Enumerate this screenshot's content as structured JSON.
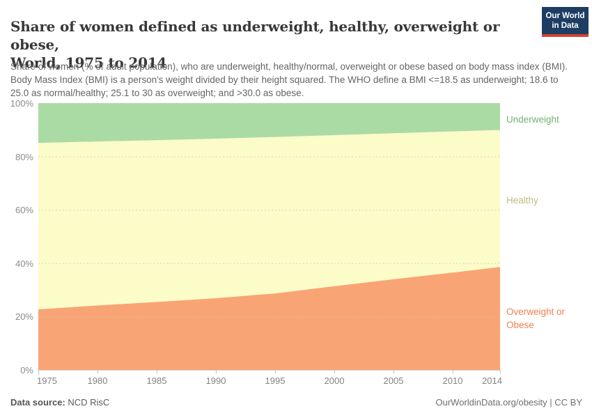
{
  "header": {
    "title_lines": [
      "Share of women defined as underweight, healthy, overweight or obese,",
      "World, 1975 to 2014"
    ],
    "subtitle": "Share of women (% of adult population), who are underweight, healthy/normal, overweight or obese based on body mass index (BMI). Body Mass Index (BMI) is a person's weight divided by their height squared. The WHO define a BMI <=18.5 as underweight; 18.6 to 25.0 as normal/healthy; 25.1 to 30 as overweight; and >30.0 as obese.",
    "logo": {
      "line1": "Our World",
      "line2": "in Data",
      "bg": "#1d3d63",
      "accent": "#d6402f"
    }
  },
  "chart_data": {
    "type": "area",
    "stacked": true,
    "title": "Share of women defined as underweight, healthy, overweight or obese, World, 1975 to 2014",
    "xlabel": "",
    "ylabel": "",
    "ylim": [
      0,
      100
    ],
    "grid": "dashed horizontal at 20/40/60/80/100",
    "legend_position": "right edge annotations",
    "x": [
      1975,
      1980,
      1985,
      1990,
      1995,
      2000,
      2005,
      2010,
      2014
    ],
    "series": [
      {
        "name": "Overweight or Obese",
        "color": "#f9a474",
        "label_color": "#ee7f50",
        "values": [
          22.7,
          24.2,
          25.5,
          26.9,
          28.7,
          31.4,
          34.0,
          36.5,
          38.6
        ]
      },
      {
        "name": "Healthy",
        "color": "#fcfcc8",
        "label_color": "#bdbc7d",
        "values": [
          62.4,
          61.4,
          60.6,
          59.8,
          58.6,
          56.6,
          54.7,
          52.9,
          51.3
        ]
      },
      {
        "name": "Underweight",
        "color": "#abdba5",
        "label_color": "#74b174",
        "values": [
          14.9,
          14.4,
          13.9,
          13.3,
          12.7,
          12.0,
          11.3,
          10.6,
          10.1
        ]
      }
    ],
    "y_ticks": [
      "0%",
      "20%",
      "40%",
      "60%",
      "80%",
      "100%"
    ],
    "x_ticks": [
      "1975",
      "1980",
      "1985",
      "1990",
      "1995",
      "2000",
      "2005",
      "2010",
      "2014"
    ]
  },
  "footer": {
    "source_label": "Data source:",
    "source_value": " NCD RisC",
    "credit": "OurWorldinData.org/obesity | CC BY"
  }
}
